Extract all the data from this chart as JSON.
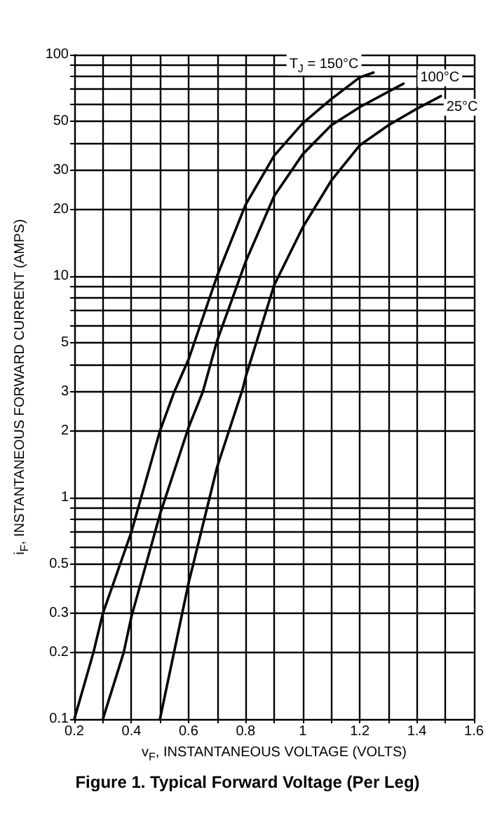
{
  "chart_data": {
    "type": "line",
    "xlabel": "v$_{F}$, INSTANTANEOUS VOLTAGE (VOLTS)",
    "ylabel": "i$_{F}$, INSTANTANEOUS FORWARD CURRENT (AMPS)",
    "annotations": [
      "Figure 1. Typical Forward Voltage (Per Leg)"
    ],
    "series": [
      {
        "name": "T$_{J}$ = 150°C",
        "color": "#000000",
        "x": [
          0.2,
          0.267,
          0.3,
          0.4,
          0.5,
          0.55,
          0.6,
          0.7,
          0.8,
          0.9,
          1.0,
          1.1,
          1.2,
          1.248
        ],
        "values": [
          0.1,
          0.2,
          0.3,
          0.7,
          2.0,
          3.0,
          4.2,
          10,
          21,
          35,
          49,
          63,
          79,
          83
        ]
      },
      {
        "name": "100°C",
        "color": "#000000",
        "x": [
          0.3,
          0.373,
          0.4,
          0.5,
          0.6,
          0.65,
          0.7,
          0.8,
          0.9,
          1.0,
          1.1,
          1.2,
          1.3,
          1.353
        ],
        "values": [
          0.1,
          0.2,
          0.29,
          0.84,
          2.07,
          3.0,
          5.1,
          11.6,
          23,
          35.5,
          48,
          58,
          68,
          74
        ]
      },
      {
        "name": "25°C",
        "color": "#000000",
        "x": [
          0.5,
          0.6,
          0.7,
          0.79,
          0.8,
          0.9,
          1.0,
          1.1,
          1.2,
          1.3,
          1.4,
          1.484
        ],
        "values": [
          0.1,
          0.41,
          1.37,
          3.1,
          3.5,
          9.1,
          16.6,
          27,
          39,
          48,
          57,
          65
        ]
      }
    ],
    "xlim": [
      0.2,
      1.6
    ],
    "xticks": [
      0.2,
      {
        "value": 0.3,
        "label": null
      },
      0.4,
      {
        "value": 0.5,
        "label": null
      },
      0.6,
      {
        "value": 0.7,
        "label": null
      },
      0.8,
      {
        "value": 0.9,
        "label": null
      },
      1,
      {
        "value": 1.1,
        "label": null
      },
      1.2,
      {
        "value": 1.3,
        "label": null
      },
      1.4,
      {
        "value": 1.5,
        "label": null
      },
      1.6
    ],
    "ylim": [
      0.1,
      100
    ],
    "log": "y",
    "yticks": [
      0.1,
      0.2,
      0.3,
      {
        "value": 0.4,
        "label": null
      },
      0.5,
      {
        "value": 0.6,
        "label": null
      },
      {
        "value": 0.7,
        "label": null
      },
      {
        "value": 0.8,
        "label": null
      },
      {
        "value": 0.9,
        "label": null
      },
      1,
      2,
      3,
      {
        "value": 4,
        "label": null
      },
      5,
      {
        "value": 6,
        "label": null
      },
      {
        "value": 7,
        "label": null
      },
      {
        "value": 8,
        "label": null
      },
      {
        "value": 9,
        "label": null
      },
      10,
      20,
      30,
      {
        "value": 40,
        "label": null
      },
      50,
      {
        "value": 60,
        "label": null
      },
      {
        "value": 70,
        "label": null
      },
      {
        "value": 80,
        "label": null
      },
      {
        "value": 90,
        "label": null
      },
      100
    ],
    "grid": true,
    "legend": false,
    "marker": "none",
    "line_style": "solid"
  }
}
